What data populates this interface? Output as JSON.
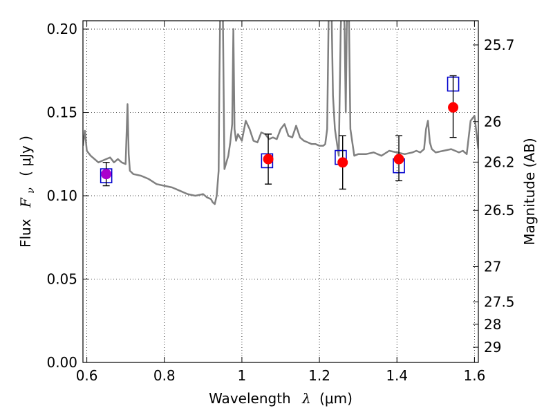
{
  "chart_data": {
    "type": "line",
    "xlabel": "Wavelength",
    "xlabel_symbol": "λ",
    "xlabel_unit": "(μm)",
    "ylabel": "Flux",
    "ylabel_symbol": "F",
    "ylabel_subscript": "ν",
    "ylabel_unit": "( μJy )",
    "y2label": "Magnitude (AB)",
    "xlim": [
      0.59,
      1.61
    ],
    "ylim": [
      0.0,
      0.205
    ],
    "grid": true,
    "grid_style": "dotted",
    "x_ticks": [
      0.6,
      0.8,
      1.0,
      1.2,
      1.4,
      1.6
    ],
    "x_tick_labels": [
      "0.6",
      "0.8",
      "1",
      "1.2",
      "1.4",
      "1.6"
    ],
    "y_ticks": [
      0.0,
      0.05,
      0.1,
      0.15,
      0.2
    ],
    "y_tick_labels": [
      "0.00",
      "0.05",
      "0.10",
      "0.15",
      "0.20"
    ],
    "y2_tick_labels": [
      "25.7",
      "26",
      "26.2",
      "26.5",
      "27",
      "27.5",
      "28",
      "29"
    ],
    "y2_tick_flux": [
      0.1905,
      0.1445,
      0.1202,
      0.0912,
      0.0575,
      0.0363,
      0.0229,
      0.0091
    ],
    "colors": {
      "spectrum": "#808080",
      "model_box": "#0000cc",
      "observed_point": "#ff0000",
      "first_point": "#aa00cc",
      "error_bar": "#000000",
      "grid": "#000000"
    },
    "series": [
      {
        "kind": "spectrum",
        "x": [
          0.59,
          0.595,
          0.6,
          0.61,
          0.62,
          0.63,
          0.64,
          0.65,
          0.66,
          0.67,
          0.68,
          0.69,
          0.7,
          0.705,
          0.708,
          0.711,
          0.72,
          0.74,
          0.76,
          0.78,
          0.8,
          0.82,
          0.84,
          0.86,
          0.88,
          0.9,
          0.91,
          0.92,
          0.925,
          0.93,
          0.935,
          0.94,
          0.942,
          0.945,
          0.95,
          0.955,
          0.96,
          0.965,
          0.97,
          0.975,
          0.978,
          0.981,
          0.985,
          0.99,
          1.0,
          1.01,
          1.02,
          1.03,
          1.04,
          1.05,
          1.06,
          1.07,
          1.08,
          1.09,
          1.1,
          1.11,
          1.12,
          1.13,
          1.14,
          1.15,
          1.16,
          1.17,
          1.18,
          1.19,
          1.2,
          1.21,
          1.215,
          1.22,
          1.225,
          1.23,
          1.235,
          1.24,
          1.25,
          1.255,
          1.26,
          1.265,
          1.268,
          1.272,
          1.275,
          1.28,
          1.29,
          1.3,
          1.32,
          1.34,
          1.36,
          1.38,
          1.4,
          1.42,
          1.44,
          1.45,
          1.46,
          1.47,
          1.475,
          1.48,
          1.485,
          1.49,
          1.5,
          1.52,
          1.54,
          1.56,
          1.57,
          1.58,
          1.59,
          1.6,
          1.61
        ],
        "y": [
          0.13,
          0.139,
          0.127,
          0.124,
          0.122,
          0.12,
          0.121,
          0.122,
          0.123,
          0.12,
          0.122,
          0.12,
          0.119,
          0.155,
          0.125,
          0.115,
          0.113,
          0.112,
          0.11,
          0.107,
          0.106,
          0.105,
          0.103,
          0.101,
          0.1,
          0.101,
          0.099,
          0.098,
          0.096,
          0.095,
          0.1,
          0.115,
          0.17,
          0.23,
          0.23,
          0.116,
          0.12,
          0.124,
          0.132,
          0.143,
          0.2,
          0.14,
          0.133,
          0.137,
          0.133,
          0.145,
          0.14,
          0.133,
          0.132,
          0.138,
          0.137,
          0.134,
          0.135,
          0.134,
          0.14,
          0.143,
          0.136,
          0.135,
          0.142,
          0.135,
          0.133,
          0.132,
          0.131,
          0.131,
          0.13,
          0.13,
          0.131,
          0.14,
          0.23,
          0.23,
          0.16,
          0.14,
          0.124,
          0.2,
          0.23,
          0.2,
          0.15,
          0.23,
          0.23,
          0.14,
          0.124,
          0.125,
          0.125,
          0.126,
          0.124,
          0.127,
          0.126,
          0.125,
          0.126,
          0.127,
          0.126,
          0.128,
          0.14,
          0.145,
          0.132,
          0.128,
          0.126,
          0.127,
          0.128,
          0.126,
          0.127,
          0.125,
          0.145,
          0.148,
          0.128
        ]
      },
      {
        "kind": "model-boxes",
        "x": [
          0.65,
          1.065,
          1.255,
          1.405,
          1.545
        ],
        "y": [
          0.112,
          0.121,
          0.123,
          0.118,
          0.167
        ]
      },
      {
        "kind": "observed-points",
        "x": [
          0.65,
          1.068,
          1.26,
          1.405,
          1.545
        ],
        "y": [
          0.113,
          0.122,
          0.12,
          0.122,
          0.153
        ],
        "err_low": [
          0.106,
          0.107,
          0.104,
          0.109,
          0.135
        ],
        "err_high": [
          0.12,
          0.137,
          0.136,
          0.136,
          0.172
        ]
      }
    ]
  }
}
